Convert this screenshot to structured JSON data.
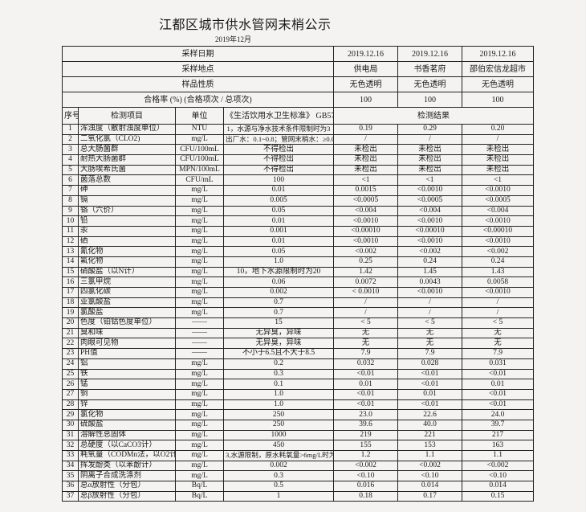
{
  "document": {
    "title": "江都区城市供水管网末梢公示",
    "subtitle": "2019年12月"
  },
  "header": {
    "sampling_date_label": "采样日期",
    "sampling_dates": [
      "2019.12.16",
      "2019.12.16",
      "2019.12.16"
    ],
    "sampling_site_label": "采样地点",
    "sampling_sites": [
      "供电局",
      "书香茗府",
      "邵伯宏信龙超市"
    ],
    "sample_nature_label": "样品性质",
    "sample_natures": [
      "无色透明",
      "无色透明",
      "无色透明"
    ],
    "pass_rate_label": "合格率 (%) (合格项次 / 总项次)",
    "pass_rates": [
      "100",
      "100",
      "100"
    ]
  },
  "columns": {
    "seq": "序号",
    "item": "检测项目",
    "unit": "单位",
    "standard": "《生活饮用水卫生标准》 GB5749",
    "results": "检测结果"
  },
  "rows": [
    [
      "1",
      "浑浊度（散射浊度单位）",
      "NTU",
      "1，水源与净水技术条件限制时为3",
      "0.19",
      "0.29",
      "0.20"
    ],
    [
      "2",
      "二氧化氯（CLO2)",
      "mg/L",
      "出厂水：0.1~0.8；管网末梢水：≥0.02",
      "/",
      "/",
      "/"
    ],
    [
      "3",
      "总大肠菌群",
      "CFU/100mL",
      "不得检出",
      "未检出",
      "未检出",
      "未检出"
    ],
    [
      "4",
      "耐热大肠菌群",
      "CFU/100mL",
      "不得检出",
      "未检出",
      "未检出",
      "未检出"
    ],
    [
      "5",
      "大肠埃希氏菌",
      "MPN/100mL",
      "不得检出",
      "未检出",
      "未检出",
      "未检出"
    ],
    [
      "6",
      "菌落总数",
      "CFU/mL",
      "100",
      "<1",
      "<1",
      "<1"
    ],
    [
      "7",
      "砷",
      "mg/L",
      "0.01",
      "0.0015",
      "<0.0010",
      "<0.0010"
    ],
    [
      "8",
      "镉",
      "mg/L",
      "0.005",
      "<0.0005",
      "<0.0005",
      "<0.0005"
    ],
    [
      "9",
      "铬（六价）",
      "mg/L",
      "0.05",
      "<0.004",
      "<0.004",
      "<0.004"
    ],
    [
      "10",
      "铅",
      "mg/L",
      "0.01",
      "<0.0010",
      "<0.0010",
      "<0.0010"
    ],
    [
      "11",
      "汞",
      "mg/L",
      "0.001",
      "<0.00010",
      "<0.00010",
      "<0.00010"
    ],
    [
      "12",
      "硒",
      "mg/L",
      "0.01",
      "<0.0010",
      "<0.0010",
      "<0.0010"
    ],
    [
      "13",
      "氰化物",
      "mg/L",
      "0.05",
      "<0.002",
      "<0.002",
      "<0.002"
    ],
    [
      "14",
      "氟化物",
      "mg/L",
      "1.0",
      "0.25",
      "0.24",
      "0.24"
    ],
    [
      "15",
      "硝酸盐（以N计）",
      "mg/L",
      "10，地下水源限制时为20",
      "1.42",
      "1.45",
      "1.43"
    ],
    [
      "16",
      "三氯甲烷",
      "mg/L",
      "0.06",
      "0.0072",
      "0.0043",
      "0.0058"
    ],
    [
      "17",
      "四氯化碳",
      "mg/L",
      "0.002",
      "< 0.0010",
      "<0.0010",
      "<0.0010"
    ],
    [
      "18",
      "亚氯酸盐",
      "mg/L",
      "0.7",
      "/",
      "/",
      "/"
    ],
    [
      "19",
      "氯酸盐",
      "mg/L",
      "0.7",
      "/",
      "/",
      "/"
    ],
    [
      "20",
      "色度（铂钴色度单位）",
      "——",
      "15",
      "< 5",
      "< 5",
      "< 5"
    ],
    [
      "21",
      "臭和味",
      "——",
      "无异臭，异味",
      "无",
      "无",
      "无"
    ],
    [
      "22",
      "肉眼可见物",
      "——",
      "无异臭，异味",
      "无",
      "无",
      "无"
    ],
    [
      "23",
      "PH值",
      "——",
      "不小于6.5且不大于8.5",
      "7.9",
      "7.9",
      "7.9"
    ],
    [
      "24",
      "铝",
      "mg/L",
      "0.2",
      "0.032",
      "0.028",
      "0.031"
    ],
    [
      "25",
      "铁",
      "mg/L",
      "0.3",
      "<0.01",
      "<0.01",
      "<0.01"
    ],
    [
      "26",
      "锰",
      "mg/L",
      "0.1",
      "0.01",
      "<0.01",
      "0.01"
    ],
    [
      "27",
      "铜",
      "mg/L",
      "1.0",
      "<0.01",
      "0.01",
      "<0.01"
    ],
    [
      "28",
      "锌",
      "mg/L",
      "1.0",
      "<0.01",
      "<0.01",
      "<0.01"
    ],
    [
      "29",
      "氯化物",
      "mg/L",
      "250",
      "23.0",
      "22.6",
      "24.0"
    ],
    [
      "30",
      "硫酸盐",
      "mg/L",
      "250",
      "39.6",
      "40.0",
      "39.7"
    ],
    [
      "31",
      "溶解性总固体",
      "mg/L",
      "1000",
      "219",
      "221",
      "217"
    ],
    [
      "32",
      "总硬度（以CaCO3计）",
      "mg/L",
      "450",
      "155",
      "153",
      "163"
    ],
    [
      "33",
      "耗氧量（CODMn法，以O2计）",
      "mg/L",
      "3,水源限制，原水耗氧量>6mg/L时为5",
      "1.2",
      "1.1",
      "1.1"
    ],
    [
      "34",
      "挥发酚类（以苯酚计）",
      "mg/L",
      "0.002",
      "<0.002",
      "<0.002",
      "<0.002"
    ],
    [
      "35",
      "阴离子合成洗涤剂",
      "mg/L",
      "0.3",
      "<0.10",
      "<0.10",
      "<0.10"
    ],
    [
      "36",
      "总α放射性（分包）",
      "Bq/L",
      "0.5",
      "0.016",
      "0.014",
      "0.014"
    ],
    [
      "37",
      "总β放射性（分包）",
      "Bq/L",
      "1",
      "0.18",
      "0.17",
      "0.15"
    ]
  ]
}
